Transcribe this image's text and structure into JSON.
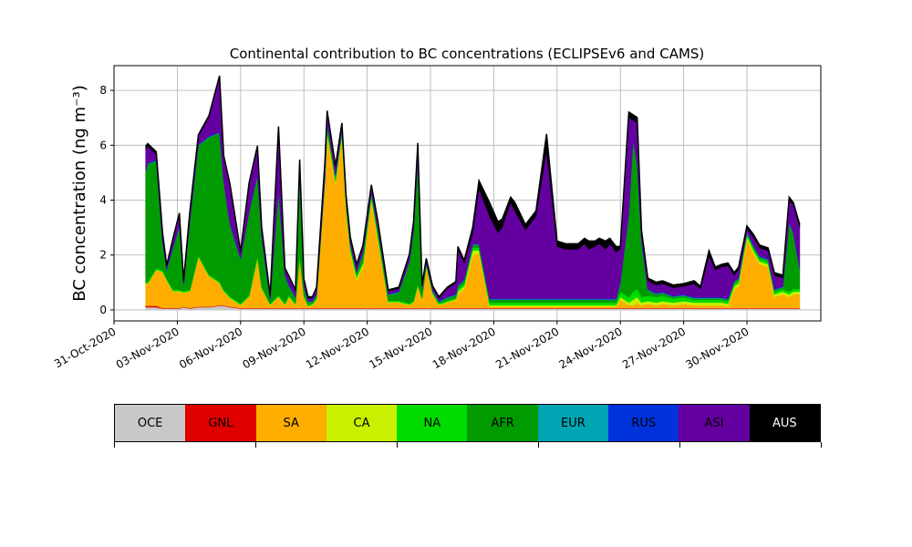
{
  "chart_data": {
    "type": "area",
    "stacked": true,
    "title": "Continental contribution to BC concentrations (ECLIPSEv6 and CAMS)",
    "xlabel": "",
    "ylabel": "BC concentration (ng m⁻³)",
    "x_ticks": [
      "31-Oct-2020",
      "03-Nov-2020",
      "06-Nov-2020",
      "09-Nov-2020",
      "12-Nov-2020",
      "15-Nov-2020",
      "18-Nov-2020",
      "21-Nov-2020",
      "24-Nov-2020",
      "27-Nov-2020",
      "30-Nov-2020"
    ],
    "y_ticks": [
      0,
      2,
      4,
      6,
      8
    ],
    "ylim": [
      -0.4,
      8.9
    ],
    "xlim": [
      "2020-10-31 00:00",
      "2020-12-03 12:00"
    ],
    "grid": true,
    "legend_placement": "bottom colorbar",
    "series_order": [
      "OCE",
      "GNL",
      "SA",
      "CA",
      "NA",
      "AFR",
      "EUR",
      "RUS",
      "ASI",
      "AUS"
    ],
    "colors": {
      "OCE": "#c8c8c8",
      "GNL": "#e00000",
      "SA": "#ffae00",
      "CA": "#c8f000",
      "NA": "#00dc00",
      "AFR": "#009b00",
      "EUR": "#00a5b4",
      "RUS": "#0032dc",
      "ASI": "#6400a0",
      "AUS": "#000000"
    },
    "x_days": [
      1.5,
      1.6,
      2.0,
      2.3,
      2.5,
      2.8,
      3.1,
      3.3,
      3.6,
      4.0,
      4.5,
      5.0,
      5.2,
      5.5,
      6.0,
      6.4,
      6.8,
      7.0,
      7.4,
      7.8,
      8.1,
      8.3,
      8.6,
      8.8,
      9.0,
      9.2,
      9.4,
      9.6,
      10.0,
      10.1,
      10.5,
      10.8,
      11.0,
      11.2,
      11.5,
      11.8,
      12.2,
      12.5,
      13.0,
      13.5,
      14.0,
      14.2,
      14.4,
      14.6,
      14.8,
      15.1,
      15.4,
      15.8,
      16.2,
      16.3,
      16.6,
      17.0,
      17.3,
      17.8,
      18.2,
      18.4,
      18.8,
      19.0,
      19.5,
      20.0,
      20.5,
      21.0,
      21.4,
      21.8,
      22.0,
      22.3,
      22.5,
      22.8,
      23.0,
      23.3,
      23.5,
      23.8,
      24.0,
      24.4,
      24.6,
      24.8,
      25.0,
      25.3,
      25.7,
      26.0,
      26.5,
      27.0,
      27.5,
      27.8,
      28.2,
      28.5,
      28.8,
      29.1,
      29.4,
      29.6,
      30.0,
      30.3,
      30.6,
      31.0,
      31.3,
      31.7,
      32.0,
      32.2,
      32.5
    ],
    "series": [
      {
        "name": "OCE",
        "values": [
          0.1,
          0.1,
          0.1,
          0.05,
          0.05,
          0.05,
          0.05,
          0.1,
          0.05,
          0.1,
          0.1,
          0.15,
          0.15,
          0.1,
          0.05,
          0.05,
          0.05,
          0.05,
          0.05,
          0.05,
          0.05,
          0.05,
          0.05,
          0.05,
          0.05,
          0.05,
          0.05,
          0.05,
          0.05,
          0.05,
          0.05,
          0.05,
          0.05,
          0.05,
          0.05,
          0.05,
          0.05,
          0.05,
          0.05,
          0.05,
          0.05,
          0.05,
          0.05,
          0.05,
          0.05,
          0.05,
          0.05,
          0.05,
          0.05,
          0.05,
          0.05,
          0.05,
          0.05,
          0.05,
          0.05,
          0.05,
          0.05,
          0.05,
          0.05,
          0.05,
          0.05,
          0.05,
          0.05,
          0.05,
          0.05,
          0.05,
          0.05,
          0.05,
          0.05,
          0.05,
          0.05,
          0.05,
          0.05,
          0.05,
          0.05,
          0.05,
          0.05,
          0.05,
          0.05,
          0.05,
          0.05,
          0.05,
          0.05,
          0.05,
          0.05,
          0.05,
          0.05,
          0.05,
          0.05,
          0.05,
          0.05,
          0.05,
          0.05,
          0.05,
          0.05,
          0.05,
          0.05,
          0.05,
          0.05
        ]
      },
      {
        "name": "GNL",
        "values": [
          0.05,
          0.05,
          0.05,
          0.02,
          0.02,
          0.02,
          0.02,
          0.02,
          0.02,
          0.02,
          0.02,
          0.02,
          0.02,
          0.02,
          0.02,
          0.02,
          0.02,
          0.02,
          0.02,
          0.02,
          0.02,
          0.02,
          0.02,
          0.02,
          0.02,
          0.02,
          0.02,
          0.02,
          0.02,
          0.02,
          0.02,
          0.02,
          0.02,
          0.02,
          0.02,
          0.02,
          0.02,
          0.02,
          0.02,
          0.02,
          0.02,
          0.02,
          0.02,
          0.02,
          0.02,
          0.02,
          0.02,
          0.02,
          0.02,
          0.02,
          0.02,
          0.02,
          0.02,
          0.02,
          0.02,
          0.02,
          0.02,
          0.02,
          0.02,
          0.02,
          0.02,
          0.02,
          0.02,
          0.02,
          0.02,
          0.02,
          0.02,
          0.02,
          0.02,
          0.02,
          0.02,
          0.02,
          0.02,
          0.02,
          0.02,
          0.02,
          0.02,
          0.02,
          0.02,
          0.02,
          0.02,
          0.02,
          0.02,
          0.02,
          0.02,
          0.02,
          0.02,
          0.02,
          0.02,
          0.02,
          0.02,
          0.02,
          0.02,
          0.02,
          0.02,
          0.02,
          0.02,
          0.02,
          0.02
        ]
      },
      {
        "name": "SA",
        "values": [
          0.8,
          0.8,
          1.3,
          1.3,
          1.0,
          0.6,
          0.6,
          0.5,
          0.6,
          1.8,
          1.1,
          0.8,
          0.5,
          0.3,
          0.1,
          0.4,
          1.8,
          0.7,
          0.1,
          0.4,
          0.1,
          0.4,
          0.1,
          1.8,
          0.4,
          0.05,
          0.1,
          0.3,
          4.5,
          6.3,
          4.5,
          6.2,
          3.5,
          2.0,
          1.0,
          1.5,
          3.9,
          2.5,
          0.2,
          0.2,
          0.1,
          0.2,
          0.8,
          0.3,
          1.5,
          0.5,
          0.1,
          0.2,
          0.3,
          0.5,
          0.7,
          1.9,
          2.0,
          0.05,
          0.05,
          0.05,
          0.05,
          0.05,
          0.05,
          0.05,
          0.05,
          0.05,
          0.05,
          0.05,
          0.05,
          0.05,
          0.05,
          0.05,
          0.05,
          0.05,
          0.05,
          0.05,
          0.3,
          0.1,
          0.1,
          0.2,
          0.1,
          0.15,
          0.1,
          0.15,
          0.1,
          0.15,
          0.1,
          0.1,
          0.1,
          0.1,
          0.1,
          0.05,
          0.7,
          0.8,
          2.5,
          2.0,
          1.6,
          1.5,
          0.4,
          0.5,
          0.4,
          0.5,
          0.5
        ]
      },
      {
        "name": "CA",
        "values": [
          0.02,
          0.02,
          0.02,
          0.02,
          0.02,
          0.02,
          0.02,
          0.02,
          0.02,
          0.02,
          0.02,
          0.02,
          0.02,
          0.02,
          0.02,
          0.02,
          0.02,
          0.02,
          0.02,
          0.02,
          0.02,
          0.02,
          0.02,
          0.02,
          0.02,
          0.02,
          0.02,
          0.02,
          0.1,
          0.1,
          0.1,
          0.1,
          0.1,
          0.1,
          0.1,
          0.1,
          0.1,
          0.1,
          0.02,
          0.02,
          0.02,
          0.02,
          0.02,
          0.02,
          0.02,
          0.02,
          0.02,
          0.02,
          0.02,
          0.1,
          0.1,
          0.2,
          0.1,
          0.05,
          0.05,
          0.05,
          0.05,
          0.05,
          0.05,
          0.05,
          0.05,
          0.05,
          0.05,
          0.05,
          0.05,
          0.05,
          0.05,
          0.05,
          0.05,
          0.05,
          0.05,
          0.05,
          0.1,
          0.1,
          0.2,
          0.2,
          0.1,
          0.1,
          0.1,
          0.1,
          0.1,
          0.1,
          0.1,
          0.1,
          0.1,
          0.1,
          0.1,
          0.1,
          0.1,
          0.1,
          0.1,
          0.1,
          0.1,
          0.1,
          0.1,
          0.1,
          0.1,
          0.1,
          0.1
        ]
      },
      {
        "name": "NA",
        "values": [
          0.05,
          0.05,
          0.05,
          0.05,
          0.05,
          0.05,
          0.05,
          0.05,
          0.05,
          0.05,
          0.05,
          0.05,
          0.05,
          0.05,
          0.05,
          0.05,
          0.1,
          0.05,
          0.05,
          0.05,
          0.05,
          0.05,
          0.05,
          0.1,
          0.05,
          0.05,
          0.05,
          0.05,
          0.1,
          0.1,
          0.1,
          0.1,
          0.1,
          0.1,
          0.1,
          0.1,
          0.1,
          0.1,
          0.05,
          0.05,
          0.05,
          0.05,
          0.05,
          0.05,
          0.05,
          0.05,
          0.05,
          0.05,
          0.05,
          0.1,
          0.1,
          0.1,
          0.1,
          0.1,
          0.1,
          0.1,
          0.1,
          0.1,
          0.1,
          0.1,
          0.1,
          0.1,
          0.1,
          0.1,
          0.1,
          0.1,
          0.1,
          0.1,
          0.1,
          0.1,
          0.1,
          0.1,
          0.2,
          0.2,
          0.3,
          0.3,
          0.2,
          0.2,
          0.2,
          0.2,
          0.15,
          0.15,
          0.1,
          0.1,
          0.1,
          0.1,
          0.1,
          0.1,
          0.1,
          0.1,
          0.1,
          0.1,
          0.1,
          0.1,
          0.1,
          0.1,
          0.1,
          0.1,
          0.1
        ]
      },
      {
        "name": "AFR",
        "values": [
          4.0,
          4.3,
          3.9,
          1.0,
          0.3,
          1.5,
          2.3,
          0.2,
          2.5,
          4.0,
          5.0,
          5.4,
          3.9,
          2.6,
          1.6,
          3.0,
          2.9,
          1.8,
          0.1,
          3.8,
          1.0,
          0.3,
          0.2,
          3.0,
          0.3,
          0.1,
          0.05,
          0.1,
          0.05,
          0.2,
          0.1,
          0.05,
          0.2,
          0.1,
          0.1,
          0.3,
          0.1,
          0.2,
          0.2,
          0.3,
          1.5,
          2.5,
          4.5,
          0.3,
          0.05,
          0.05,
          0.05,
          0.1,
          0.1,
          0.1,
          0.1,
          0.1,
          0.1,
          0.1,
          0.1,
          0.1,
          0.1,
          0.1,
          0.1,
          0.1,
          0.1,
          0.1,
          0.1,
          0.1,
          0.1,
          0.1,
          0.1,
          0.1,
          0.1,
          0.1,
          0.1,
          0.1,
          0.3,
          3.0,
          5.5,
          4.5,
          2.0,
          0.2,
          0.1,
          0.1,
          0.05,
          0.05,
          0.05,
          0.05,
          0.05,
          0.05,
          0.05,
          0.05,
          0.05,
          0.05,
          0.05,
          0.05,
          0.05,
          0.05,
          0.05,
          0.05,
          2.5,
          2.0,
          0.7
        ]
      },
      {
        "name": "EUR",
        "values": [
          0.02,
          0.02,
          0.02,
          0.02,
          0.02,
          0.02,
          0.02,
          0.02,
          0.02,
          0.02,
          0.02,
          0.02,
          0.02,
          0.02,
          0.02,
          0.02,
          0.02,
          0.02,
          0.02,
          0.02,
          0.02,
          0.02,
          0.02,
          0.02,
          0.02,
          0.02,
          0.02,
          0.02,
          0.02,
          0.02,
          0.02,
          0.02,
          0.02,
          0.02,
          0.02,
          0.02,
          0.02,
          0.02,
          0.02,
          0.02,
          0.02,
          0.02,
          0.02,
          0.02,
          0.02,
          0.02,
          0.02,
          0.02,
          0.02,
          0.02,
          0.02,
          0.02,
          0.02,
          0.02,
          0.02,
          0.02,
          0.02,
          0.02,
          0.02,
          0.02,
          0.02,
          0.02,
          0.02,
          0.02,
          0.02,
          0.02,
          0.02,
          0.02,
          0.02,
          0.02,
          0.02,
          0.02,
          0.02,
          0.02,
          0.02,
          0.02,
          0.02,
          0.02,
          0.02,
          0.02,
          0.02,
          0.02,
          0.02,
          0.02,
          0.02,
          0.02,
          0.02,
          0.02,
          0.02,
          0.02,
          0.02,
          0.02,
          0.02,
          0.02,
          0.02,
          0.02,
          0.02,
          0.02,
          0.02
        ]
      },
      {
        "name": "RUS",
        "values": [
          0.02,
          0.02,
          0.02,
          0.02,
          0.02,
          0.02,
          0.02,
          0.02,
          0.02,
          0.02,
          0.02,
          0.02,
          0.02,
          0.02,
          0.02,
          0.02,
          0.02,
          0.02,
          0.02,
          0.02,
          0.02,
          0.02,
          0.02,
          0.02,
          0.02,
          0.02,
          0.02,
          0.02,
          0.02,
          0.02,
          0.02,
          0.02,
          0.02,
          0.02,
          0.02,
          0.02,
          0.02,
          0.02,
          0.02,
          0.02,
          0.02,
          0.02,
          0.02,
          0.02,
          0.02,
          0.02,
          0.02,
          0.02,
          0.02,
          0.02,
          0.02,
          0.02,
          0.02,
          0.02,
          0.02,
          0.02,
          0.02,
          0.02,
          0.02,
          0.02,
          0.02,
          0.02,
          0.02,
          0.02,
          0.02,
          0.02,
          0.02,
          0.02,
          0.02,
          0.02,
          0.02,
          0.02,
          0.02,
          0.02,
          0.02,
          0.02,
          0.02,
          0.02,
          0.02,
          0.02,
          0.02,
          0.02,
          0.02,
          0.02,
          0.02,
          0.02,
          0.02,
          0.02,
          0.02,
          0.02,
          0.02,
          0.02,
          0.02,
          0.02,
          0.02,
          0.02,
          0.02,
          0.02,
          0.02
        ]
      },
      {
        "name": "ASI",
        "values": [
          0.8,
          0.6,
          0.2,
          0.3,
          0.1,
          0.3,
          0.4,
          0.1,
          0.3,
          0.3,
          0.7,
          2.0,
          0.9,
          1.4,
          0.2,
          1.0,
          1.0,
          0.3,
          0.1,
          2.2,
          0.2,
          0.3,
          0.2,
          0.4,
          0.2,
          0.1,
          0.1,
          0.2,
          0.5,
          0.4,
          0.3,
          0.2,
          0.1,
          0.2,
          0.2,
          0.2,
          0.2,
          0.2,
          0.1,
          0.1,
          0.2,
          0.3,
          0.5,
          0.1,
          0.1,
          0.1,
          0.1,
          0.3,
          0.4,
          1.3,
          0.6,
          0.4,
          2.0,
          3.0,
          2.4,
          2.6,
          3.5,
          3.2,
          2.5,
          3.0,
          5.4,
          1.9,
          1.8,
          1.8,
          1.8,
          2.0,
          1.8,
          1.9,
          2.0,
          1.8,
          2.0,
          1.7,
          1.2,
          3.5,
          0.7,
          1.5,
          0.3,
          0.3,
          0.3,
          0.3,
          0.3,
          0.3,
          0.5,
          0.3,
          1.5,
          1.0,
          1.1,
          1.2,
          0.2,
          0.3,
          0.1,
          0.3,
          0.3,
          0.3,
          0.5,
          0.3,
          0.8,
          1.0,
          1.5
        ]
      },
      {
        "name": "AUS",
        "values": [
          0.1,
          0.1,
          0.1,
          0.05,
          0.05,
          0.05,
          0.05,
          0.05,
          0.05,
          0.05,
          0.05,
          0.05,
          0.05,
          0.05,
          0.05,
          0.05,
          0.05,
          0.05,
          0.05,
          0.1,
          0.05,
          0.05,
          0.05,
          0.05,
          0.05,
          0.05,
          0.05,
          0.05,
          0.05,
          0.05,
          0.05,
          0.05,
          0.05,
          0.05,
          0.05,
          0.05,
          0.05,
          0.05,
          0.05,
          0.05,
          0.05,
          0.05,
          0.1,
          0.05,
          0.05,
          0.05,
          0.05,
          0.05,
          0.05,
          0.1,
          0.1,
          0.2,
          0.3,
          0.5,
          0.4,
          0.3,
          0.2,
          0.3,
          0.2,
          0.2,
          0.6,
          0.2,
          0.2,
          0.2,
          0.2,
          0.2,
          0.3,
          0.2,
          0.2,
          0.3,
          0.2,
          0.2,
          0.1,
          0.2,
          0.2,
          0.2,
          0.1,
          0.1,
          0.1,
          0.1,
          0.1,
          0.1,
          0.1,
          0.1,
          0.2,
          0.1,
          0.1,
          0.1,
          0.1,
          0.1,
          0.1,
          0.1,
          0.1,
          0.1,
          0.1,
          0.1,
          0.1,
          0.1,
          0.1
        ]
      }
    ]
  },
  "legend": [
    "OCE",
    "GNL",
    "SA",
    "CA",
    "NA",
    "AFR",
    "EUR",
    "RUS",
    "ASI",
    "AUS"
  ],
  "legend_text_colors": {
    "OCE": "#000000",
    "GNL": "#000000",
    "SA": "#000000",
    "CA": "#000000",
    "NA": "#000000",
    "AFR": "#000000",
    "EUR": "#000000",
    "RUS": "#000000",
    "ASI": "#000000",
    "AUS": "#ffffff"
  }
}
